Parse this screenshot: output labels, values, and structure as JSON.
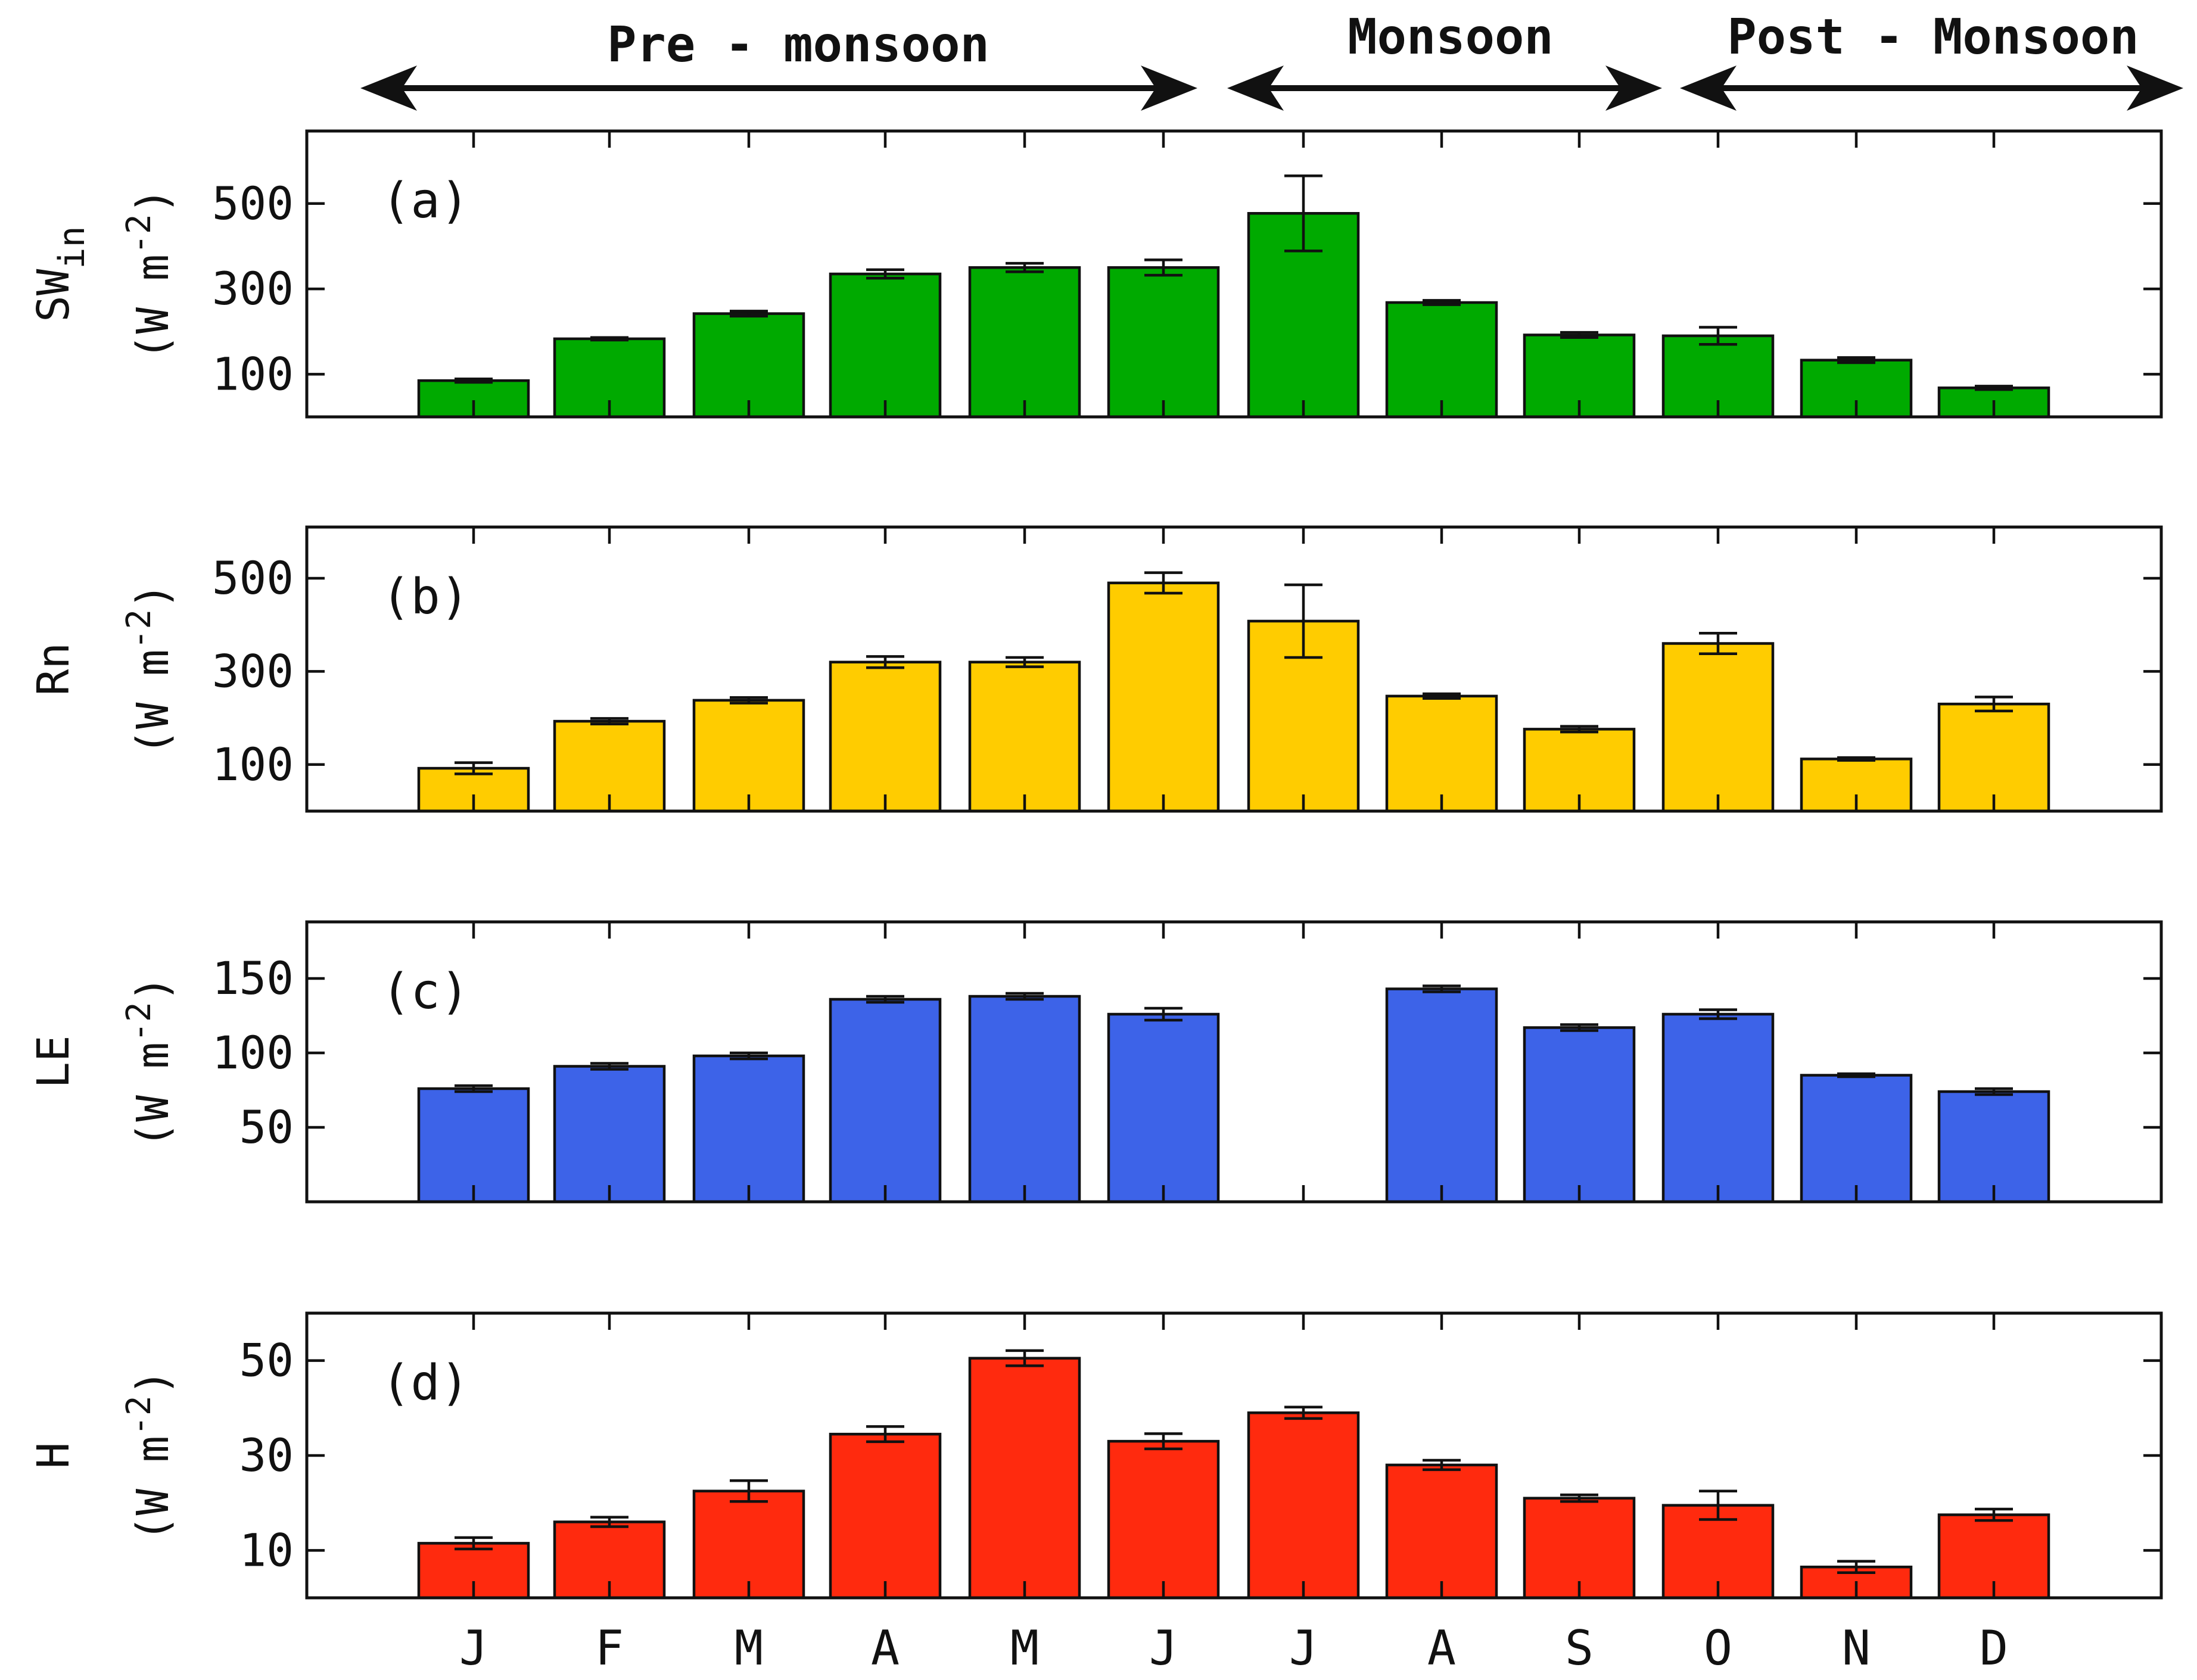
{
  "seasons": [
    {
      "label": "Pre - monsoon"
    },
    {
      "label": "Monsoon"
    },
    {
      "label": "Post - Monsoon"
    }
  ],
  "months": [
    "J",
    "F",
    "M",
    "A",
    "M",
    "J",
    "J",
    "A",
    "S",
    "O",
    "N",
    "D"
  ],
  "chart_data": [
    {
      "type": "bar",
      "panel_label": "(a)",
      "ylabel_main": "SW",
      "ylabel_sub": "in",
      "ylabel_units_prefix": "(W m",
      "ylabel_units_sup": "-2",
      "ylabel_units_suffix": ")",
      "color": "#00AA00",
      "ylim": [
        0,
        670
      ],
      "yticks": [
        "100",
        "300",
        "500"
      ],
      "categories": [
        "J",
        "F",
        "M",
        "A",
        "M",
        "J",
        "J",
        "A",
        "S",
        "O",
        "N",
        "D"
      ],
      "values": [
        85,
        183,
        242,
        335,
        350,
        350,
        477,
        268,
        192,
        190,
        133,
        68
      ],
      "errors": [
        4,
        3,
        6,
        10,
        10,
        18,
        88,
        5,
        6,
        20,
        6,
        4
      ]
    },
    {
      "type": "bar",
      "panel_label": "(b)",
      "ylabel_main": "Rn",
      "ylabel_sub": "",
      "ylabel_units_prefix": "(W m",
      "ylabel_units_sup": "-2",
      "ylabel_units_suffix": ")",
      "color": "#FFCC00",
      "ylim": [
        0,
        610
      ],
      "yticks": [
        "100",
        "300",
        "500"
      ],
      "categories": [
        "J",
        "F",
        "M",
        "A",
        "M",
        "J",
        "J",
        "A",
        "S",
        "O",
        "N",
        "D"
      ],
      "values": [
        92,
        193,
        238,
        320,
        320,
        490,
        408,
        247,
        176,
        360,
        112,
        230
      ],
      "errors": [
        12,
        6,
        6,
        12,
        10,
        22,
        78,
        5,
        6,
        22,
        3,
        15
      ]
    },
    {
      "type": "bar",
      "panel_label": "(c)",
      "ylabel_main": "LE",
      "ylabel_sub": "",
      "ylabel_units_prefix": "(W m",
      "ylabel_units_sup": "-2",
      "ylabel_units_suffix": ")",
      "color": "#3D63E8",
      "ylim": [
        0,
        188
      ],
      "yticks": [
        "50",
        "100",
        "150"
      ],
      "categories": [
        "J",
        "F",
        "M",
        "A",
        "M",
        "J",
        "J",
        "A",
        "S",
        "O",
        "N",
        "D"
      ],
      "values": [
        76,
        91,
        98,
        136,
        138,
        126,
        null,
        143,
        117,
        126,
        85,
        74
      ],
      "errors": [
        2,
        2,
        2,
        2,
        2,
        4,
        null,
        2,
        2,
        3,
        1,
        2
      ]
    },
    {
      "type": "bar",
      "panel_label": "(d)",
      "ylabel_main": "H",
      "ylabel_sub": "",
      "ylabel_units_prefix": "(W m",
      "ylabel_units_sup": "-2",
      "ylabel_units_suffix": ")",
      "color": "#FF2A0E",
      "ylim": [
        0,
        60
      ],
      "yticks": [
        "10",
        "30",
        "50"
      ],
      "categories": [
        "J",
        "F",
        "M",
        "A",
        "M",
        "J",
        "J",
        "A",
        "S",
        "O",
        "N",
        "D"
      ],
      "values": [
        11.5,
        16,
        22.5,
        34.5,
        50.5,
        33,
        39,
        28,
        21,
        19.5,
        6.5,
        17.5
      ],
      "errors": [
        1.2,
        1.0,
        2.2,
        1.6,
        1.6,
        1.6,
        1.2,
        1.0,
        0.7,
        3.0,
        1.2,
        1.2
      ]
    }
  ]
}
